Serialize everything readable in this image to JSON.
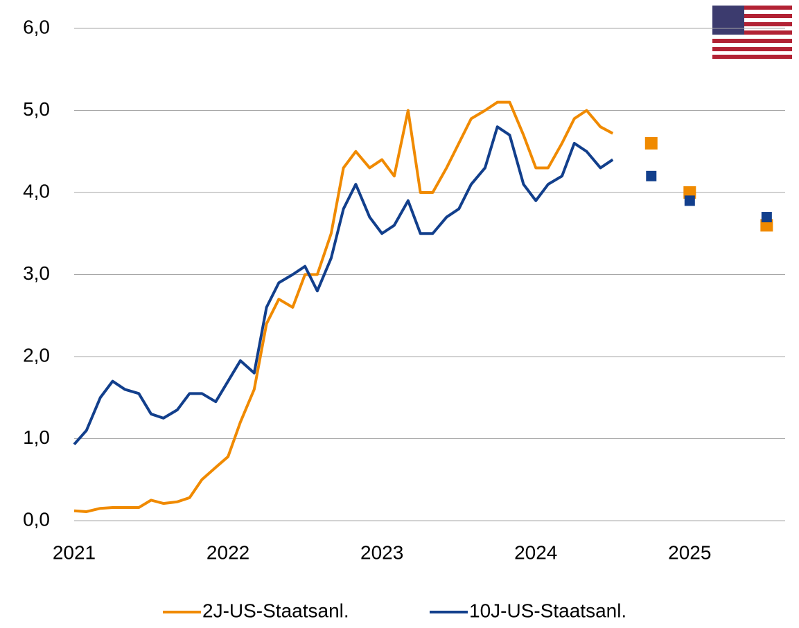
{
  "chart_data": {
    "type": "line",
    "xlim": [
      2021,
      2025.62
    ],
    "xticks": [
      2021,
      2022,
      2023,
      2024,
      2025
    ],
    "ylim": [
      0,
      6
    ],
    "yticks": [
      {
        "value": 0,
        "label": "0,0"
      },
      {
        "value": 1,
        "label": "1,0"
      },
      {
        "value": 2,
        "label": "2,0"
      },
      {
        "value": 3,
        "label": "3,0"
      },
      {
        "value": 4,
        "label": "4,0"
      },
      {
        "value": 5,
        "label": "5,0"
      },
      {
        "value": 6,
        "label": "6,0"
      }
    ],
    "grid": true,
    "legend": "bottom",
    "series": [
      {
        "name": "2J-US-Staatsanl.",
        "color": "#f08a00",
        "x": [
          2021,
          2021.08,
          2021.17,
          2021.25,
          2021.33,
          2021.42,
          2021.5,
          2021.58,
          2021.67,
          2021.75,
          2021.83,
          2021.92,
          2022,
          2022.08,
          2022.17,
          2022.25,
          2022.33,
          2022.42,
          2022.5,
          2022.58,
          2022.67,
          2022.75,
          2022.83,
          2022.92,
          2023,
          2023.08,
          2023.17,
          2023.25,
          2023.33,
          2023.42,
          2023.5,
          2023.58,
          2023.67,
          2023.75,
          2023.83,
          2023.92,
          2024,
          2024.08,
          2024.17,
          2024.25,
          2024.33,
          2024.42,
          2024.5
        ],
        "values": [
          0.12,
          0.11,
          0.15,
          0.16,
          0.16,
          0.16,
          0.25,
          0.21,
          0.23,
          0.28,
          0.5,
          0.65,
          0.78,
          1.2,
          1.6,
          2.4,
          2.7,
          2.6,
          3.0,
          3.0,
          3.5,
          4.3,
          4.5,
          4.3,
          4.4,
          4.2,
          5.0,
          4.0,
          4.0,
          4.3,
          4.6,
          4.9,
          5.0,
          5.1,
          5.1,
          4.7,
          4.3,
          4.3,
          4.6,
          4.9,
          5.0,
          4.8,
          4.72
        ],
        "forecast": {
          "x": [
            2024.75,
            2025,
            2025.5
          ],
          "values": [
            4.6,
            4.0,
            3.6
          ]
        }
      },
      {
        "name": "10J-US-Staatsanl.",
        "color": "#123f8c",
        "x": [
          2021,
          2021.08,
          2021.17,
          2021.25,
          2021.33,
          2021.42,
          2021.5,
          2021.58,
          2021.67,
          2021.75,
          2021.83,
          2021.92,
          2022,
          2022.08,
          2022.17,
          2022.25,
          2022.33,
          2022.42,
          2022.5,
          2022.58,
          2022.67,
          2022.75,
          2022.83,
          2022.92,
          2023,
          2023.08,
          2023.17,
          2023.25,
          2023.33,
          2023.42,
          2023.5,
          2023.58,
          2023.67,
          2023.75,
          2023.83,
          2023.92,
          2024,
          2024.08,
          2024.17,
          2024.25,
          2024.33,
          2024.42,
          2024.5
        ],
        "values": [
          0.93,
          1.1,
          1.5,
          1.7,
          1.6,
          1.55,
          1.3,
          1.25,
          1.35,
          1.55,
          1.55,
          1.45,
          1.7,
          1.95,
          1.8,
          2.6,
          2.9,
          3.0,
          3.1,
          2.8,
          3.2,
          3.8,
          4.1,
          3.7,
          3.5,
          3.6,
          3.9,
          3.5,
          3.5,
          3.7,
          3.8,
          4.1,
          4.3,
          4.8,
          4.7,
          4.1,
          3.9,
          4.1,
          4.2,
          4.6,
          4.5,
          4.3,
          4.4
        ],
        "forecast": {
          "x": [
            2024.75,
            2025,
            2025.5
          ],
          "values": [
            4.2,
            3.9,
            3.7
          ]
        }
      }
    ]
  }
}
